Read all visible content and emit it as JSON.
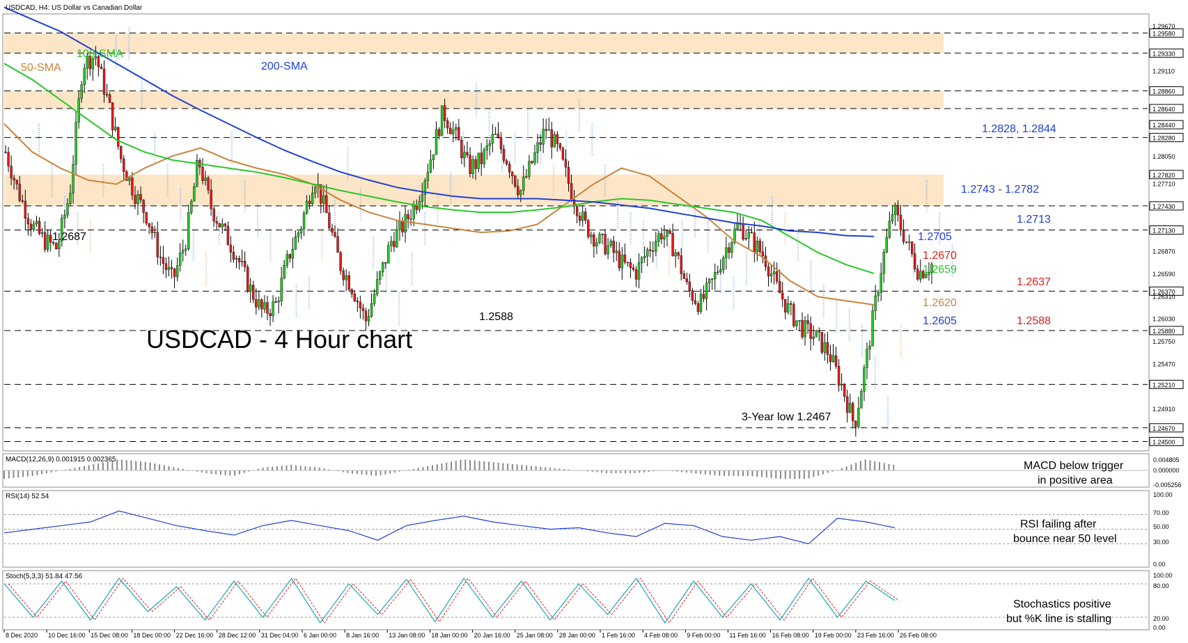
{
  "chart_data": {
    "type": "candlestick",
    "header": "USDCAD, H4:  US Dollar vs Canadian Dollar",
    "title": "USDCAD - 4 Hour chart",
    "price_axis": {
      "range": [
        1.244,
        1.298
      ],
      "ticks": [
        "1.29670",
        "1.29580",
        "1.29330",
        "1.29110",
        "1.28860",
        "1.28640",
        "1.28440",
        "1.28280",
        "1.28050",
        "1.27820",
        "1.27710",
        "1.27430",
        "1.27130",
        "1.26870",
        "1.26590",
        "1.26370",
        "1.26310",
        "1.26030",
        "1.25880",
        "1.25750",
        "1.25470",
        "1.25210",
        "1.24910",
        "1.24670",
        "1.24500"
      ],
      "boxed_ticks": [
        "1.29580",
        "1.29330",
        "1.28860",
        "1.28640",
        "1.28440",
        "1.28280",
        "1.27820",
        "1.27430",
        "1.27130",
        "1.26370",
        "1.25880",
        "1.25210",
        "1.24670",
        "1.24500"
      ]
    },
    "x_axis_labels": [
      "8 Dec 2020",
      "10 Dec 16:00",
      "15 Dec 08:00",
      "18 Dec 00:00",
      "22 Dec 16:00",
      "28 Dec 12:00",
      "31 Dec 04:00",
      "6 Jan 00:00",
      "8 Jan 16:00",
      "13 Jan 08:00",
      "18 Jan 00:00",
      "20 Jan 16:00",
      "25 Jan 08:00",
      "28 Jan 00:00",
      "1 Feb 16:00",
      "4 Feb 08:00",
      "9 Feb 00:00",
      "11 Feb 16:00",
      "16 Feb 08:00",
      "19 Feb 00:00",
      "23 Feb 16:00",
      "26 Feb 08:00"
    ],
    "horizontal_levels": [
      1.2958,
      1.2933,
      1.2886,
      1.2864,
      1.2828,
      1.2743,
      1.2713,
      1.2637,
      1.2588,
      1.2521,
      1.2467,
      1.245
    ],
    "resistance_zones": [
      [
        1.2933,
        1.2958
      ],
      [
        1.2864,
        1.2886
      ],
      [
        1.2743,
        1.2782
      ]
    ],
    "series": [
      {
        "name": "50-SMA",
        "color": "#c8843c",
        "values": [
          1.2845,
          1.281,
          1.279,
          1.2775,
          1.277,
          1.279,
          1.2805,
          1.2815,
          1.28,
          1.279,
          1.2782,
          1.277,
          1.275,
          1.2735,
          1.2725,
          1.272,
          1.2715,
          1.271,
          1.2712,
          1.272,
          1.2745,
          1.277,
          1.279,
          1.278,
          1.2755,
          1.273,
          1.27,
          1.268,
          1.265,
          1.263,
          1.2625,
          1.262
        ]
      },
      {
        "name": "100-SMA",
        "color": "#27c727",
        "values": [
          1.292,
          1.29,
          1.2875,
          1.285,
          1.2825,
          1.281,
          1.28,
          1.2795,
          1.279,
          1.2785,
          1.2778,
          1.277,
          1.2762,
          1.2755,
          1.2748,
          1.2742,
          1.2738,
          1.2735,
          1.2735,
          1.2738,
          1.2742,
          1.2748,
          1.2752,
          1.275,
          1.2745,
          1.274,
          1.2735,
          1.2725,
          1.2705,
          1.2685,
          1.267,
          1.2659
        ]
      },
      {
        "name": "200-SMA",
        "color": "#1f3fd4",
        "values": [
          1.299,
          1.2975,
          1.296,
          1.294,
          1.292,
          1.29,
          1.288,
          1.2862,
          1.2845,
          1.2828,
          1.2812,
          1.2798,
          1.2785,
          1.2775,
          1.2766,
          1.276,
          1.2755,
          1.2752,
          1.2752,
          1.2752,
          1.275,
          1.2748,
          1.2744,
          1.274,
          1.2734,
          1.2728,
          1.2722,
          1.2718,
          1.2712,
          1.271,
          1.2706,
          1.2705
        ]
      }
    ],
    "price_path": [
      1.281,
      1.276,
      1.272,
      1.27,
      1.269,
      1.276,
      1.292,
      1.293,
      1.287,
      1.28,
      1.276,
      1.273,
      1.268,
      1.265,
      1.27,
      1.28,
      1.274,
      1.271,
      1.268,
      1.264,
      1.261,
      1.262,
      1.268,
      1.272,
      1.278,
      1.273,
      1.267,
      1.264,
      1.26,
      1.265,
      1.27,
      1.272,
      1.275,
      1.28,
      1.286,
      1.283,
      1.279,
      1.28,
      1.283,
      1.28,
      1.276,
      1.28,
      1.284,
      1.281,
      1.276,
      1.272,
      1.27,
      1.269,
      1.267,
      1.266,
      1.269,
      1.271,
      1.269,
      1.264,
      1.262,
      1.265,
      1.269,
      1.272,
      1.27,
      1.268,
      1.264,
      1.261,
      1.259,
      1.258,
      1.256,
      1.252,
      1.247,
      1.256,
      1.266,
      1.274,
      1.27,
      1.266,
      1.267
    ],
    "annotations": [
      {
        "text": "100-SMA",
        "color": "#27c727"
      },
      {
        "text": "50-SMA",
        "color": "#c8843c"
      },
      {
        "text": "200-SMA",
        "color": "#1f3fd4"
      },
      {
        "text": "1.2687",
        "color": "#000000"
      },
      {
        "text": "1.2588",
        "color": "#000000"
      },
      {
        "text": "3-Year low 1.2467",
        "color": "#000000"
      },
      {
        "text": "1.2828, 1.2844",
        "color": "#1f3fd4"
      },
      {
        "text": "1.2743 - 1.2782",
        "color": "#1f3fd4"
      },
      {
        "text": "1.2713",
        "color": "#1f3fd4"
      },
      {
        "text": "1.2705",
        "color": "#1f3fd4"
      },
      {
        "text": "1.2670",
        "color": "#e31b1b"
      },
      {
        "text": "1.2659",
        "color": "#27c727"
      },
      {
        "text": "1.2637",
        "color": "#e31b1b"
      },
      {
        "text": "1.2620",
        "color": "#c8843c"
      },
      {
        "text": "1.2605",
        "color": "#1f3fd4"
      },
      {
        "text": "1.2588",
        "color": "#e31b1b"
      }
    ],
    "macd": {
      "header": "MACD(12,26,9) 0.001915 0.002365",
      "ticks": [
        "0.004805",
        "0.000000",
        "-0.005256"
      ],
      "note": [
        "MACD below trigger",
        "in positive area"
      ],
      "values": [
        -0.003,
        -0.002,
        0.0,
        0.002,
        0.004,
        0.003,
        0.001,
        -0.001,
        -0.002,
        0.001,
        0.002,
        0.001,
        -0.001,
        -0.002,
        0.0,
        0.002,
        0.004,
        0.003,
        0.002,
        0.001,
        0.0,
        -0.001,
        -0.001,
        0.0,
        -0.001,
        -0.002,
        -0.002,
        -0.003,
        -0.003,
        0.0,
        0.004,
        0.002
      ]
    },
    "rsi": {
      "header": "RSI(14) 52.54",
      "ticks": [
        "100.00",
        "70.00",
        "50.00",
        "30.00",
        "0.00"
      ],
      "note": [
        "RSI failing after",
        "bounce near 50 level"
      ],
      "values": [
        45,
        50,
        55,
        60,
        75,
        65,
        55,
        48,
        42,
        55,
        62,
        55,
        48,
        35,
        55,
        62,
        68,
        60,
        55,
        50,
        52,
        45,
        40,
        58,
        55,
        40,
        35,
        40,
        30,
        65,
        60,
        52
      ]
    },
    "stochastic": {
      "header": "Stoch(5,3,3) 51.84 47.56",
      "ticks": [
        "100.00",
        "80.00",
        "20.00",
        "0.00"
      ],
      "note": [
        "Stochastics positive",
        "but %K line is stalling"
      ],
      "values": [
        80,
        20,
        85,
        15,
        90,
        30,
        75,
        15,
        85,
        20,
        90,
        10,
        80,
        25,
        88,
        12,
        90,
        20,
        85,
        15,
        80,
        25,
        90,
        10,
        85,
        20,
        80,
        15,
        90,
        20,
        85,
        50
      ]
    },
    "colors": {
      "background": "#ffffff",
      "zone": "#fde5c7",
      "candle_up": "#27c727",
      "candle_down": "#e31b1b",
      "cloud": "#6aa3d8",
      "cloud_up": "#f2a35c"
    }
  }
}
